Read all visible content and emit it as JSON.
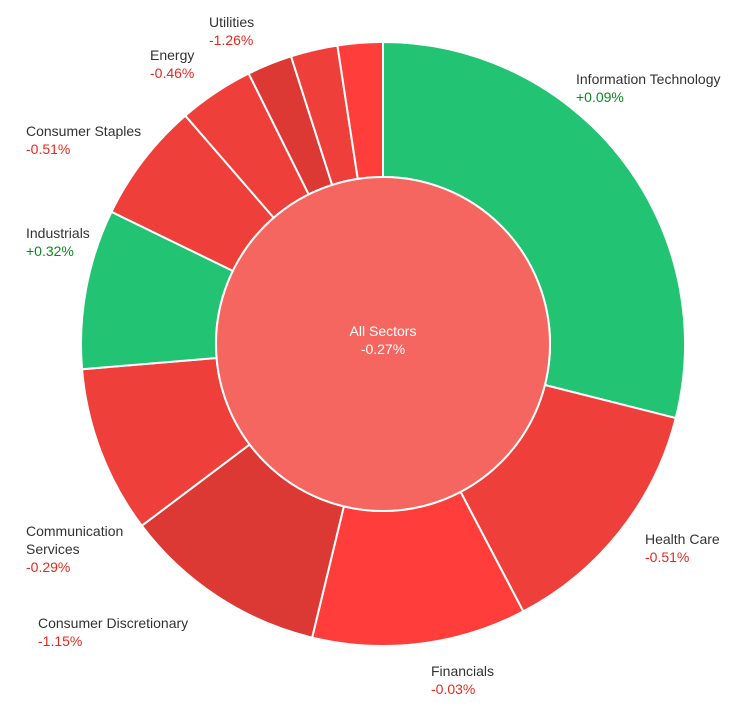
{
  "chart_data": {
    "type": "pie",
    "center": {
      "label": "All Sectors",
      "change": "-0.27%",
      "value": -0.27,
      "color": "#f4665f"
    },
    "sectors": [
      {
        "name": "Information Technology",
        "change": "+0.09%",
        "value": 0.09,
        "weight": 28.8,
        "color": "#22c373"
      },
      {
        "name": "Health Care",
        "change": "-0.51%",
        "value": -0.51,
        "weight": 13.3,
        "color": "#ef3f3a"
      },
      {
        "name": "Financials",
        "change": "-0.03%",
        "value": -0.03,
        "weight": 11.4,
        "color": "#ff3e3b"
      },
      {
        "name": "Consumer Discretionary",
        "change": "-1.15%",
        "value": -1.15,
        "weight": 10.9,
        "color": "#dd3934"
      },
      {
        "name": "Communication Services",
        "change": "-0.29%",
        "value": -0.29,
        "weight": 8.9,
        "color": "#ef3f3a"
      },
      {
        "name": "Industrials",
        "change": "+0.32%",
        "value": 0.32,
        "weight": 8.5,
        "color": "#22c373"
      },
      {
        "name": "Consumer Staples",
        "change": "-0.51%",
        "value": -0.51,
        "weight": 6.4,
        "color": "#ef3f3a"
      },
      {
        "name": "Energy",
        "change": "-0.46%",
        "value": -0.46,
        "weight": 4.0,
        "color": "#ef3f3a"
      },
      {
        "name": "",
        "change": "",
        "value": null,
        "weight": 2.4,
        "color": "#dd3934"
      },
      {
        "name": "",
        "change": "",
        "value": null,
        "weight": 2.5,
        "color": "#ef3f3a"
      },
      {
        "name": "Utilities",
        "change": "-1.26%",
        "value": -1.26,
        "weight": 2.4,
        "color": "#ff3e3b"
      }
    ],
    "positive_color": "#0a8a1f",
    "negative_color": "#e8281f"
  }
}
